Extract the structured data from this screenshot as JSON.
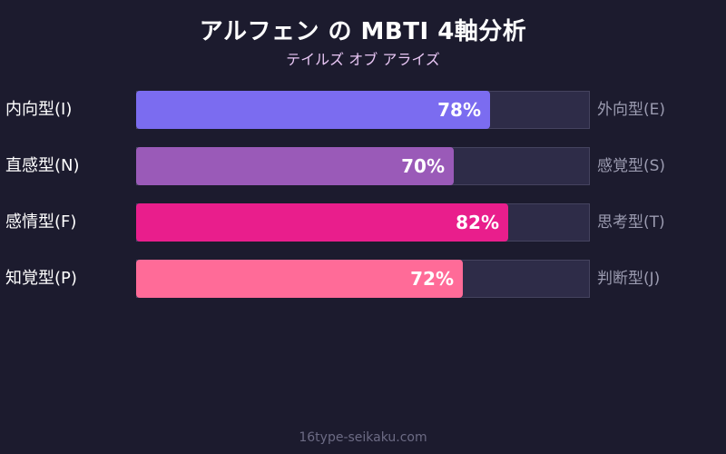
{
  "title": "アルフェン の MBTI 4軸分析",
  "subtitle": "テイルズ オブ アライズ",
  "footer": "16type-seikaku.com",
  "chart_data": {
    "type": "bar",
    "orientation": "horizontal",
    "title": "アルフェン の MBTI 4軸分析",
    "subtitle": "テイルズ オブ アライズ",
    "xlim": [
      0,
      100
    ],
    "grid": false,
    "rows": [
      {
        "left_label": "内向型(I)",
        "right_label": "外向型(E)",
        "value": 78,
        "value_label": "78%",
        "color": "#7b6cf0"
      },
      {
        "left_label": "直感型(N)",
        "right_label": "感覚型(S)",
        "value": 70,
        "value_label": "70%",
        "color": "#9a5ab8"
      },
      {
        "left_label": "感情型(F)",
        "right_label": "思考型(T)",
        "value": 82,
        "value_label": "82%",
        "color": "#e91e8c"
      },
      {
        "left_label": "知覚型(P)",
        "right_label": "判断型(J)",
        "value": 72,
        "value_label": "72%",
        "color": "#ff6b98"
      }
    ]
  }
}
